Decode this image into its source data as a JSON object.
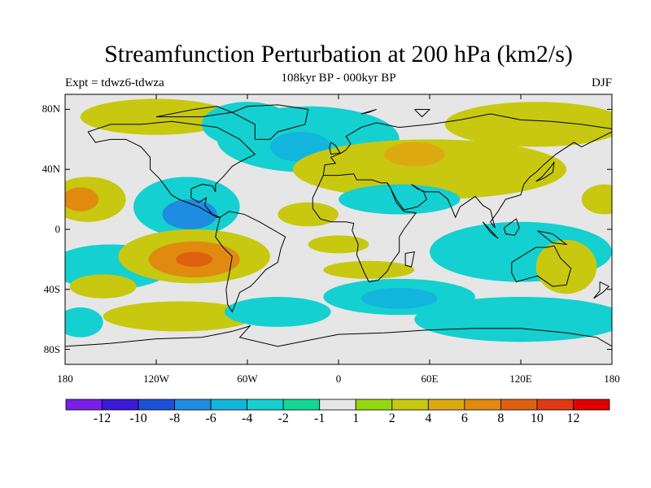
{
  "title": "Streamfunction Perturbation at 200 hPa (km2/s)",
  "subtitle": "108kyr BP - 000kyr BP",
  "left_label": "Expt = tdwz6-tdwza",
  "right_label": "DJF",
  "map": {
    "projection": "cylindrical-equidistant",
    "lon_range": [
      -180,
      180
    ],
    "lat_range": [
      -90,
      90
    ],
    "lat_ticks": [
      {
        "lat": 80,
        "label": "80N"
      },
      {
        "lat": 40,
        "label": "40N"
      },
      {
        "lat": 0,
        "label": "0"
      },
      {
        "lat": -40,
        "label": "40S"
      },
      {
        "lat": -80,
        "label": "80S"
      }
    ],
    "lon_ticks": [
      {
        "lon": -180,
        "label": "180"
      },
      {
        "lon": -120,
        "label": "120W"
      },
      {
        "lon": -60,
        "label": "60W"
      },
      {
        "lon": 0,
        "label": "0"
      },
      {
        "lon": 60,
        "label": "60E"
      },
      {
        "lon": 120,
        "label": "120E"
      },
      {
        "lon": 180,
        "label": "180"
      }
    ]
  },
  "colorbar": {
    "colors": [
      "#7a1ee8",
      "#3c18d8",
      "#1c50d8",
      "#1e8ce0",
      "#12b6dc",
      "#14d0d0",
      "#12d896",
      "#e6e6e6",
      "#96d810",
      "#c8c810",
      "#dcaa10",
      "#e08a10",
      "#e06010",
      "#e03a12",
      "#e00000"
    ],
    "labels": [
      {
        "index": 1,
        "text": "-12"
      },
      {
        "index": 2,
        "text": "-10"
      },
      {
        "index": 3,
        "text": "-8"
      },
      {
        "index": 4,
        "text": "-6"
      },
      {
        "index": 5,
        "text": "-4"
      },
      {
        "index": 6,
        "text": "-2"
      },
      {
        "index": 7,
        "text": "-1"
      },
      {
        "index": 8,
        "text": "1"
      },
      {
        "index": 9,
        "text": "2"
      },
      {
        "index": 10,
        "text": "4"
      },
      {
        "index": 11,
        "text": "6"
      },
      {
        "index": 12,
        "text": "8"
      },
      {
        "index": 13,
        "text": "10"
      },
      {
        "index": 14,
        "text": "12"
      }
    ]
  },
  "regions": [
    {
      "lon": -120,
      "lat": 75,
      "rx": 50,
      "ry": 12,
      "level": "2"
    },
    {
      "lon": -60,
      "lat": 70,
      "rx": 30,
      "ry": 15,
      "level": "-2"
    },
    {
      "lon": -20,
      "lat": 60,
      "rx": 60,
      "ry": 22,
      "level": "-2"
    },
    {
      "lon": -25,
      "lat": 55,
      "rx": 20,
      "ry": 10,
      "level": "-4"
    },
    {
      "lon": -165,
      "lat": 20,
      "rx": 25,
      "ry": 15,
      "level": "2"
    },
    {
      "lon": -170,
      "lat": 20,
      "rx": 12,
      "ry": 8,
      "level": "6"
    },
    {
      "lon": -100,
      "lat": 15,
      "rx": 35,
      "ry": 20,
      "level": "-2"
    },
    {
      "lon": -98,
      "lat": 10,
      "rx": 18,
      "ry": 10,
      "level": "-6"
    },
    {
      "lon": -150,
      "lat": -25,
      "rx": 40,
      "ry": 15,
      "level": "-2"
    },
    {
      "lon": -95,
      "lat": -18,
      "rx": 50,
      "ry": 18,
      "level": "2"
    },
    {
      "lon": -95,
      "lat": -20,
      "rx": 30,
      "ry": 12,
      "level": "6"
    },
    {
      "lon": -95,
      "lat": -20,
      "rx": 12,
      "ry": 5,
      "level": "8"
    },
    {
      "lon": -155,
      "lat": -38,
      "rx": 22,
      "ry": 8,
      "level": "2"
    },
    {
      "lon": -105,
      "lat": -58,
      "rx": 50,
      "ry": 10,
      "level": "2"
    },
    {
      "lon": -40,
      "lat": -55,
      "rx": 35,
      "ry": 10,
      "level": "-2"
    },
    {
      "lon": -20,
      "lat": 10,
      "rx": 20,
      "ry": 8,
      "level": "2"
    },
    {
      "lon": 0,
      "lat": -10,
      "rx": 20,
      "ry": 6,
      "level": "2"
    },
    {
      "lon": 20,
      "lat": -27,
      "rx": 30,
      "ry": 6,
      "level": "2"
    },
    {
      "lon": 40,
      "lat": -45,
      "rx": 50,
      "ry": 12,
      "level": "-2"
    },
    {
      "lon": 40,
      "lat": -46,
      "rx": 25,
      "ry": 7,
      "level": "-4"
    },
    {
      "lon": 60,
      "lat": 40,
      "rx": 90,
      "ry": 20,
      "level": "2"
    },
    {
      "lon": 50,
      "lat": 50,
      "rx": 20,
      "ry": 8,
      "level": "4"
    },
    {
      "lon": 130,
      "lat": 70,
      "rx": 60,
      "ry": 15,
      "level": "2"
    },
    {
      "lon": 40,
      "lat": 20,
      "rx": 40,
      "ry": 10,
      "level": "-2"
    },
    {
      "lon": 120,
      "lat": -15,
      "rx": 60,
      "ry": 20,
      "level": "-2"
    },
    {
      "lon": 150,
      "lat": -25,
      "rx": 20,
      "ry": 18,
      "level": "2"
    },
    {
      "lon": 175,
      "lat": 20,
      "rx": 15,
      "ry": 10,
      "level": "2"
    },
    {
      "lon": 120,
      "lat": -60,
      "rx": 70,
      "ry": 15,
      "level": "-2"
    },
    {
      "lon": -170,
      "lat": -62,
      "rx": 15,
      "ry": 10,
      "level": "-2"
    }
  ]
}
